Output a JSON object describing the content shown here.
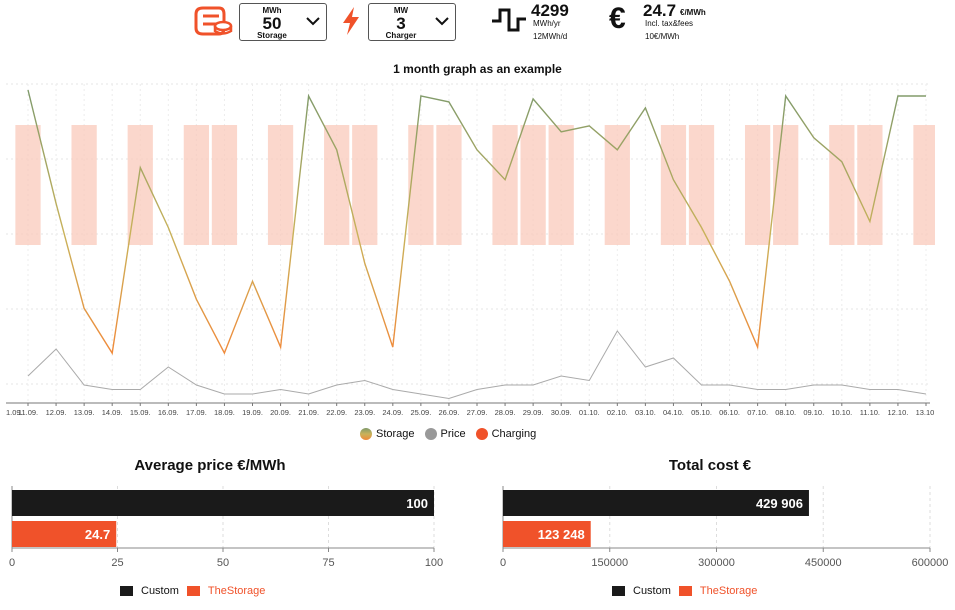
{
  "header": {
    "storage": {
      "unit": "MWh",
      "value": "50",
      "label": "Storage"
    },
    "charger": {
      "unit": "MW",
      "value": "3",
      "label": "Charger"
    },
    "consumption": {
      "value": "4299",
      "unit": "MWh/yr",
      "daily": "12MWh/d"
    },
    "price": {
      "symbol": "€",
      "value": "24.7",
      "unit": "€/MWh",
      "note": "Incl. tax&fees",
      "fee": "10€/MWh"
    },
    "icons": [
      "storage-logo-icon",
      "chevron-down-icon",
      "bolt-icon",
      "consumption-wave-icon",
      "euro-icon"
    ],
    "accent": "#f0522a"
  },
  "main_title": "1 month graph as an example",
  "legend": [
    {
      "label": "Storage",
      "color": "gradient-green-orange"
    },
    {
      "label": "Price",
      "color": "#999999"
    },
    {
      "label": "Charging",
      "color": "#f0522a"
    }
  ],
  "chart_data": [
    {
      "type": "line",
      "x": [
        "11.09.",
        "12.09.",
        "13.09.",
        "14.09.",
        "15.09.",
        "16.09.",
        "17.09.",
        "18.09.",
        "19.09.",
        "20.09.",
        "21.09.",
        "22.09.",
        "23.09.",
        "24.09.",
        "25.09.",
        "26.09.",
        "27.09.",
        "28.09.",
        "29.09.",
        "30.09.",
        "01.10.",
        "02.10.",
        "03.10.",
        "04.10.",
        "05.10.",
        "06.10.",
        "07.10.",
        "08.10.",
        "09.10.",
        "10.10.",
        "11.10.",
        "12.10.",
        "13.10."
      ],
      "x_first_partial": "1.09.",
      "series": [
        {
          "name": "Storage",
          "values": [
            98,
            60,
            25,
            10,
            72,
            52,
            28,
            10,
            34,
            12,
            96,
            78,
            40,
            12,
            96,
            94,
            78,
            68,
            95,
            84,
            86,
            78,
            92,
            68,
            52,
            34,
            12,
            96,
            82,
            74,
            54,
            96,
            96
          ]
        },
        {
          "name": "Price",
          "values": [
            6,
            12,
            4,
            3,
            3,
            8,
            4,
            2,
            2,
            3,
            2,
            4,
            5,
            3,
            2,
            1,
            3,
            4,
            4,
            6,
            5,
            16,
            8,
            10,
            4,
            4,
            3,
            3,
            4,
            4,
            3,
            3,
            2
          ]
        },
        {
          "name": "Charging",
          "values": [
            1,
            0,
            1,
            0,
            1,
            0,
            1,
            1,
            0,
            1,
            0,
            1,
            1,
            0,
            1,
            1,
            0,
            1,
            1,
            1,
            0,
            1,
            0,
            1,
            1,
            0,
            1,
            1,
            0,
            1,
            1,
            0,
            1
          ]
        }
      ],
      "grid": true,
      "legend_position": "bottom"
    },
    {
      "type": "bar",
      "title": "Average price €/MWh",
      "orientation": "horizontal",
      "categories": [
        "Custom",
        "TheStorage"
      ],
      "values": [
        100,
        24.7
      ],
      "labels": [
        "100",
        "24.7"
      ],
      "colors": [
        "#1a1a1a",
        "#f0522a"
      ],
      "xlim": [
        0,
        100
      ],
      "ticks": [
        "0",
        "25",
        "50",
        "75",
        "100"
      ],
      "legend_position": "bottom"
    },
    {
      "type": "bar",
      "title": "Total cost €",
      "orientation": "horizontal",
      "categories": [
        "Custom",
        "TheStorage"
      ],
      "values": [
        429906,
        123248
      ],
      "labels": [
        "429 906",
        "123 248"
      ],
      "colors": [
        "#1a1a1a",
        "#f0522a"
      ],
      "xlim": [
        0,
        600000
      ],
      "ticks": [
        "0",
        "150000",
        "300000",
        "450000",
        "600000"
      ],
      "legend_position": "bottom"
    }
  ]
}
